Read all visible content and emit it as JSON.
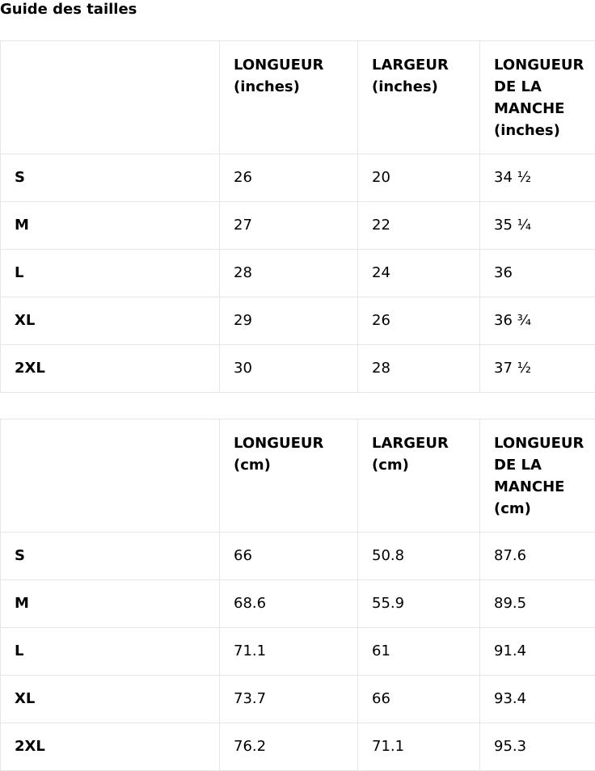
{
  "title": "Guide des tailles",
  "tables": [
    {
      "header": [
        "",
        "LONGUEUR (inches)",
        "LARGEUR (inches)",
        "LONGUEUR DE LA MANCHE (inches)"
      ],
      "rows": [
        [
          "S",
          26,
          20,
          "34 ½"
        ],
        [
          "M",
          27,
          22,
          "35 ¼"
        ],
        [
          "L",
          28,
          24,
          36
        ],
        [
          "XL",
          29,
          26,
          "36 ¾"
        ],
        [
          "2XL",
          30,
          28,
          "37 ½"
        ]
      ]
    },
    {
      "header": [
        "",
        "LONGUEUR (cm)",
        "LARGEUR (cm)",
        "LONGUEUR DE LA MANCHE (cm)"
      ],
      "rows": [
        [
          "S",
          66,
          50.8,
          87.6
        ],
        [
          "M",
          68.6,
          55.9,
          89.5
        ],
        [
          "L",
          71.1,
          61,
          91.4
        ],
        [
          "XL",
          73.7,
          66,
          93.4
        ],
        [
          "2XL",
          76.2,
          71.1,
          95.3
        ]
      ]
    }
  ]
}
